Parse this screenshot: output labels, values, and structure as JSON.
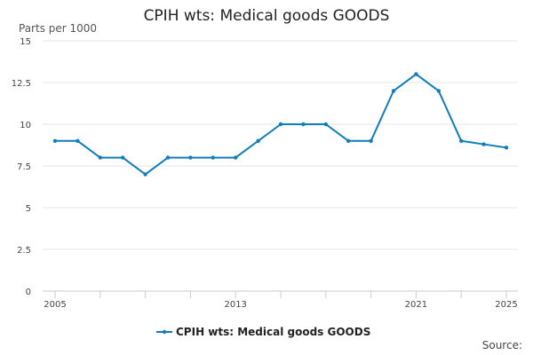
{
  "chart_data": {
    "type": "line",
    "title": "CPIH wts: Medical goods GOODS",
    "ylabel": "Parts per 1000",
    "xlabel": "",
    "source_label": "Source:",
    "x": [
      2005,
      2006,
      2007,
      2008,
      2009,
      2010,
      2011,
      2012,
      2013,
      2014,
      2015,
      2016,
      2017,
      2018,
      2019,
      2020,
      2021,
      2022,
      2023,
      2024,
      2025
    ],
    "x_tick_labels": [
      "2005",
      "2013",
      "2021",
      "2025"
    ],
    "x_tick_values": [
      2005,
      2013,
      2021,
      2025
    ],
    "x_minor_ticks": [
      2005,
      2007,
      2009,
      2011,
      2013,
      2015,
      2017,
      2019,
      2021,
      2023,
      2025
    ],
    "y_ticks": [
      0,
      2.5,
      5,
      7.5,
      10,
      12.5,
      15
    ],
    "y_tick_labels": [
      "0",
      "2.5",
      "5",
      "7.5",
      "10",
      "12.5",
      "15"
    ],
    "ylim": [
      0,
      15
    ],
    "xlim": [
      2005,
      2025
    ],
    "grid": true,
    "legend_position": "bottom",
    "series": [
      {
        "name": "CPIH wts: Medical goods GOODS",
        "color": "#0f7cbd",
        "values": [
          9,
          9,
          8,
          8,
          7,
          8,
          8,
          8,
          8,
          9,
          10,
          10,
          10,
          9,
          9,
          12,
          13,
          12,
          9,
          8.8,
          8.6
        ]
      }
    ]
  }
}
